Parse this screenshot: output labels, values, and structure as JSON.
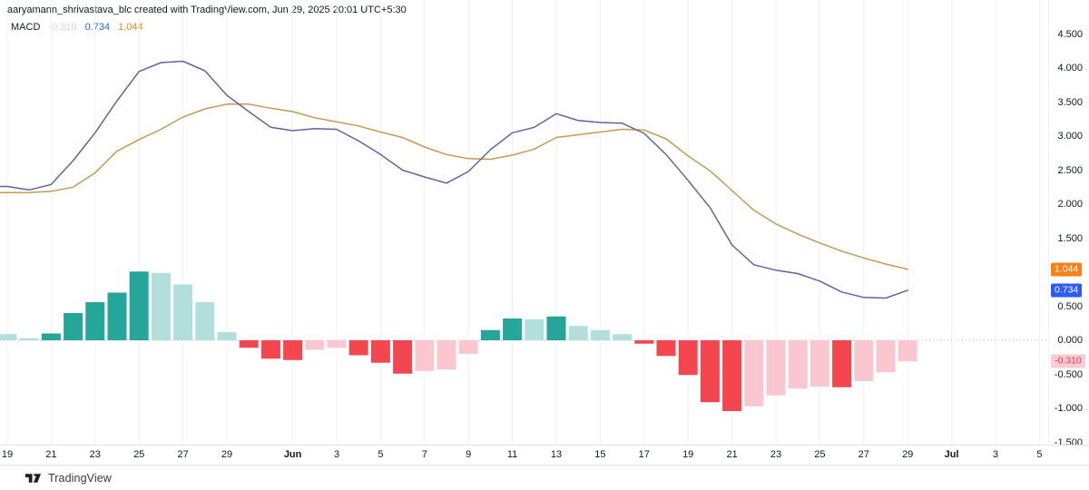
{
  "attribution": {
    "text": "aaryamann_shrivastava_blc created with TradingView.com, Jun 29, 2025 20:01 UTC+5:30"
  },
  "legend": {
    "title": "MACD",
    "hist_value": "-0.310",
    "macd_value": "0.734",
    "signal_value": "1.044"
  },
  "price_axis": {
    "ticks": [
      "4.500",
      "4.000",
      "3.500",
      "3.000",
      "2.500",
      "2.000",
      "1.500",
      "0.500",
      "0.000",
      "-0.500",
      "-1.000",
      "-1.500"
    ],
    "badges": [
      {
        "label": "1.044",
        "value": 1.044,
        "bg": "#f7821c",
        "fg": "#ffffff"
      },
      {
        "label": "0.734",
        "value": 0.734,
        "bg": "#2d5bff",
        "fg": "#ffffff"
      },
      {
        "label": "-0.310",
        "value": -0.31,
        "bg": "#f8ccd5",
        "fg": "#f23645"
      }
    ]
  },
  "time_axis": {
    "ticks": [
      {
        "label": "19",
        "day": 0
      },
      {
        "label": "21",
        "day": 2
      },
      {
        "label": "23",
        "day": 4
      },
      {
        "label": "25",
        "day": 6
      },
      {
        "label": "27",
        "day": 8
      },
      {
        "label": "29",
        "day": 10
      },
      {
        "label": "Jun",
        "day": 13,
        "month": true
      },
      {
        "label": "3",
        "day": 15
      },
      {
        "label": "5",
        "day": 17
      },
      {
        "label": "7",
        "day": 19
      },
      {
        "label": "9",
        "day": 21
      },
      {
        "label": "11",
        "day": 23
      },
      {
        "label": "13",
        "day": 25
      },
      {
        "label": "15",
        "day": 27
      },
      {
        "label": "17",
        "day": 29
      },
      {
        "label": "19",
        "day": 31
      },
      {
        "label": "21",
        "day": 33
      },
      {
        "label": "23",
        "day": 35
      },
      {
        "label": "25",
        "day": 37
      },
      {
        "label": "27",
        "day": 39
      },
      {
        "label": "29",
        "day": 41
      },
      {
        "label": "Jul",
        "day": 43,
        "month": true
      },
      {
        "label": "3",
        "day": 45
      },
      {
        "label": "5",
        "day": 47
      }
    ]
  },
  "footer": {
    "brand": "TradingView"
  },
  "chart_data": {
    "type": "line",
    "subtype": "macd-indicator",
    "title": "MACD",
    "x_dates": [
      "May 19",
      "May 20",
      "May 21",
      "May 22",
      "May 23",
      "May 24",
      "May 25",
      "May 26",
      "May 27",
      "May 28",
      "May 29",
      "May 30",
      "May 31",
      "Jun 1",
      "Jun 2",
      "Jun 3",
      "Jun 4",
      "Jun 5",
      "Jun 6",
      "Jun 7",
      "Jun 8",
      "Jun 9",
      "Jun 10",
      "Jun 11",
      "Jun 12",
      "Jun 13",
      "Jun 14",
      "Jun 15",
      "Jun 16",
      "Jun 17",
      "Jun 18",
      "Jun 19",
      "Jun 20",
      "Jun 21",
      "Jun 22",
      "Jun 23",
      "Jun 24",
      "Jun 25",
      "Jun 26",
      "Jun 27",
      "Jun 28",
      "Jun 29"
    ],
    "series": [
      {
        "name": "MACD line",
        "color": "#5c66a3",
        "values": [
          2.26,
          2.21,
          2.29,
          2.64,
          3.05,
          3.52,
          3.95,
          4.08,
          4.1,
          3.96,
          3.6,
          3.36,
          3.13,
          3.08,
          3.11,
          3.1,
          2.93,
          2.73,
          2.5,
          2.4,
          2.31,
          2.48,
          2.8,
          3.05,
          3.13,
          3.33,
          3.23,
          3.2,
          3.19,
          3.04,
          2.73,
          2.35,
          1.95,
          1.4,
          1.11,
          1.03,
          0.98,
          0.87,
          0.71,
          0.63,
          0.62,
          0.734
        ]
      },
      {
        "name": "Signal line",
        "color": "#c49a55",
        "values": [
          2.17,
          2.17,
          2.19,
          2.25,
          2.46,
          2.78,
          2.95,
          3.1,
          3.28,
          3.4,
          3.47,
          3.47,
          3.41,
          3.36,
          3.27,
          3.21,
          3.15,
          3.06,
          2.98,
          2.84,
          2.73,
          2.67,
          2.66,
          2.72,
          2.81,
          2.98,
          3.02,
          3.06,
          3.1,
          3.09,
          2.96,
          2.71,
          2.49,
          2.2,
          1.91,
          1.71,
          1.56,
          1.43,
          1.31,
          1.21,
          1.12,
          1.044
        ]
      }
    ],
    "histogram": {
      "values": [
        0.09,
        0.03,
        0.1,
        0.4,
        0.56,
        0.7,
        1.01,
        0.99,
        0.82,
        0.56,
        0.12,
        -0.11,
        -0.27,
        -0.29,
        -0.14,
        -0.11,
        -0.22,
        -0.33,
        -0.49,
        -0.45,
        -0.43,
        -0.2,
        0.15,
        0.32,
        0.31,
        0.35,
        0.21,
        0.15,
        0.09,
        -0.05,
        -0.23,
        -0.51,
        -0.91,
        -1.04,
        -0.97,
        -0.81,
        -0.71,
        -0.68,
        -0.69,
        -0.6,
        -0.47,
        -0.31
      ],
      "colors": {
        "grow_above": "#26a69a",
        "fall_above": "#b2dfdb",
        "fall_below": "#f4464f",
        "grow_below": "#fac6d0"
      }
    },
    "last_values": {
      "macd": 0.734,
      "signal": 1.044,
      "histogram": -0.31
    },
    "yticks": [
      4.5,
      4.0,
      3.5,
      3.0,
      2.5,
      2.0,
      1.5,
      1.0,
      0.5,
      0.0,
      -0.5,
      -1.0,
      -1.5
    ],
    "ylim": [
      -1.53,
      5.0
    ],
    "zero_line_dotted": true,
    "grid": "vertical-faint",
    "legend_position": "top-left",
    "xlabel": "",
    "ylabel": ""
  }
}
